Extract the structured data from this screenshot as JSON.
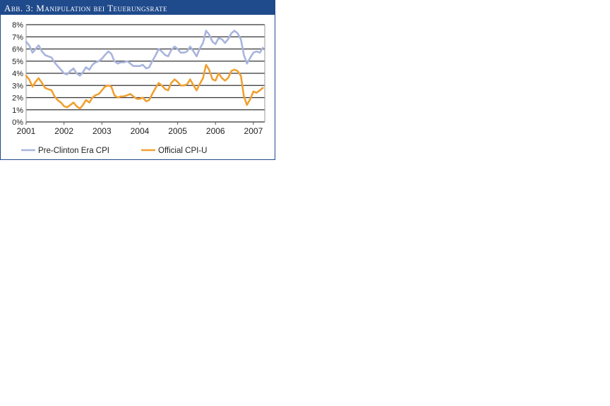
{
  "figure": {
    "title": "Abb. 3: Manipulation bei Teuerungsrate"
  },
  "colors": {
    "header_bg": "#1f4a8c",
    "pre_clinton": "#a8b4dc",
    "official": "#f0a030",
    "grid": "#333333"
  },
  "chart_data": {
    "type": "line",
    "title": "",
    "xlabel": "",
    "ylabel": "",
    "xlim": [
      2001.0,
      2007.3
    ],
    "ylim": [
      0,
      8
    ],
    "x_ticks": [
      2001,
      2002,
      2003,
      2004,
      2005,
      2006,
      2007
    ],
    "x_tick_labels": [
      "2001",
      "2002",
      "2003",
      "2004",
      "2005",
      "2006",
      "2007"
    ],
    "y_ticks": [
      0,
      1,
      2,
      3,
      4,
      5,
      6,
      7,
      8
    ],
    "y_tick_labels": [
      "0%",
      "1%",
      "2%",
      "3%",
      "4%",
      "5%",
      "6%",
      "7%",
      "8%"
    ],
    "grid": "horizontal",
    "legend_position": "bottom",
    "series": [
      {
        "name": "Pre-Clinton Era CPI",
        "color": "#a8b4dc",
        "points": [
          [
            2001.0,
            6.6
          ],
          [
            2001.08,
            6.3
          ],
          [
            2001.17,
            5.7
          ],
          [
            2001.25,
            6.0
          ],
          [
            2001.33,
            6.3
          ],
          [
            2001.42,
            5.8
          ],
          [
            2001.5,
            5.5
          ],
          [
            2001.58,
            5.4
          ],
          [
            2001.67,
            5.3
          ],
          [
            2001.75,
            4.9
          ],
          [
            2001.83,
            4.6
          ],
          [
            2001.92,
            4.3
          ],
          [
            2002.0,
            4.0
          ],
          [
            2002.08,
            3.9
          ],
          [
            2002.17,
            4.2
          ],
          [
            2002.25,
            4.4
          ],
          [
            2002.33,
            4.0
          ],
          [
            2002.42,
            3.8
          ],
          [
            2002.5,
            4.1
          ],
          [
            2002.58,
            4.5
          ],
          [
            2002.67,
            4.3
          ],
          [
            2002.75,
            4.7
          ],
          [
            2002.83,
            4.9
          ],
          [
            2002.92,
            5.0
          ],
          [
            2003.0,
            5.2
          ],
          [
            2003.08,
            5.5
          ],
          [
            2003.17,
            5.8
          ],
          [
            2003.25,
            5.6
          ],
          [
            2003.33,
            5.0
          ],
          [
            2003.42,
            4.8
          ],
          [
            2003.5,
            4.9
          ],
          [
            2003.58,
            4.9
          ],
          [
            2003.67,
            5.0
          ],
          [
            2003.75,
            4.8
          ],
          [
            2003.83,
            4.6
          ],
          [
            2003.92,
            4.6
          ],
          [
            2004.0,
            4.6
          ],
          [
            2004.08,
            4.7
          ],
          [
            2004.17,
            4.4
          ],
          [
            2004.25,
            4.5
          ],
          [
            2004.33,
            5.0
          ],
          [
            2004.42,
            5.5
          ],
          [
            2004.5,
            6.0
          ],
          [
            2004.58,
            5.8
          ],
          [
            2004.67,
            5.5
          ],
          [
            2004.75,
            5.4
          ],
          [
            2004.83,
            5.9
          ],
          [
            2004.92,
            6.2
          ],
          [
            2005.0,
            6.0
          ],
          [
            2005.08,
            5.7
          ],
          [
            2005.17,
            5.7
          ],
          [
            2005.25,
            5.8
          ],
          [
            2005.33,
            6.2
          ],
          [
            2005.42,
            5.8
          ],
          [
            2005.5,
            5.4
          ],
          [
            2005.58,
            6.0
          ],
          [
            2005.67,
            6.5
          ],
          [
            2005.75,
            7.5
          ],
          [
            2005.83,
            7.2
          ],
          [
            2005.92,
            6.6
          ],
          [
            2006.0,
            6.4
          ],
          [
            2006.08,
            6.9
          ],
          [
            2006.17,
            6.8
          ],
          [
            2006.25,
            6.5
          ],
          [
            2006.33,
            6.8
          ],
          [
            2006.42,
            7.3
          ],
          [
            2006.5,
            7.5
          ],
          [
            2006.58,
            7.3
          ],
          [
            2006.67,
            6.8
          ],
          [
            2006.75,
            5.5
          ],
          [
            2006.83,
            4.8
          ],
          [
            2006.92,
            5.3
          ],
          [
            2007.0,
            5.7
          ],
          [
            2007.08,
            5.8
          ],
          [
            2007.17,
            5.7
          ],
          [
            2007.25,
            6.1
          ]
        ]
      },
      {
        "name": "Official CPI-U",
        "color": "#f0a030",
        "points": [
          [
            2001.0,
            3.8
          ],
          [
            2001.08,
            3.5
          ],
          [
            2001.17,
            2.9
          ],
          [
            2001.25,
            3.3
          ],
          [
            2001.33,
            3.6
          ],
          [
            2001.42,
            3.2
          ],
          [
            2001.5,
            2.8
          ],
          [
            2001.58,
            2.7
          ],
          [
            2001.67,
            2.6
          ],
          [
            2001.75,
            2.1
          ],
          [
            2001.83,
            1.8
          ],
          [
            2001.92,
            1.6
          ],
          [
            2002.0,
            1.3
          ],
          [
            2002.08,
            1.2
          ],
          [
            2002.17,
            1.4
          ],
          [
            2002.25,
            1.6
          ],
          [
            2002.33,
            1.3
          ],
          [
            2002.42,
            1.1
          ],
          [
            2002.5,
            1.4
          ],
          [
            2002.58,
            1.8
          ],
          [
            2002.67,
            1.6
          ],
          [
            2002.75,
            2.0
          ],
          [
            2002.83,
            2.2
          ],
          [
            2002.92,
            2.3
          ],
          [
            2003.0,
            2.6
          ],
          [
            2003.08,
            2.9
          ],
          [
            2003.17,
            3.0
          ],
          [
            2003.25,
            2.9
          ],
          [
            2003.33,
            2.2
          ],
          [
            2003.42,
            2.0
          ],
          [
            2003.5,
            2.1
          ],
          [
            2003.58,
            2.1
          ],
          [
            2003.67,
            2.2
          ],
          [
            2003.75,
            2.3
          ],
          [
            2003.83,
            2.1
          ],
          [
            2003.92,
            1.9
          ],
          [
            2004.0,
            1.9
          ],
          [
            2004.08,
            2.0
          ],
          [
            2004.17,
            1.7
          ],
          [
            2004.25,
            1.8
          ],
          [
            2004.33,
            2.3
          ],
          [
            2004.42,
            2.8
          ],
          [
            2004.5,
            3.2
          ],
          [
            2004.58,
            3.0
          ],
          [
            2004.67,
            2.7
          ],
          [
            2004.75,
            2.6
          ],
          [
            2004.83,
            3.2
          ],
          [
            2004.92,
            3.5
          ],
          [
            2005.0,
            3.3
          ],
          [
            2005.08,
            3.0
          ],
          [
            2005.17,
            3.0
          ],
          [
            2005.25,
            3.1
          ],
          [
            2005.33,
            3.5
          ],
          [
            2005.42,
            3.0
          ],
          [
            2005.5,
            2.6
          ],
          [
            2005.58,
            3.1
          ],
          [
            2005.67,
            3.6
          ],
          [
            2005.75,
            4.7
          ],
          [
            2005.83,
            4.3
          ],
          [
            2005.92,
            3.5
          ],
          [
            2006.0,
            3.4
          ],
          [
            2006.08,
            4.0
          ],
          [
            2006.17,
            3.6
          ],
          [
            2006.25,
            3.4
          ],
          [
            2006.33,
            3.6
          ],
          [
            2006.42,
            4.2
          ],
          [
            2006.5,
            4.3
          ],
          [
            2006.58,
            4.2
          ],
          [
            2006.67,
            3.8
          ],
          [
            2006.75,
            2.1
          ],
          [
            2006.83,
            1.4
          ],
          [
            2006.92,
            1.9
          ],
          [
            2007.0,
            2.5
          ],
          [
            2007.08,
            2.4
          ],
          [
            2007.17,
            2.6
          ],
          [
            2007.25,
            2.8
          ]
        ]
      }
    ]
  }
}
